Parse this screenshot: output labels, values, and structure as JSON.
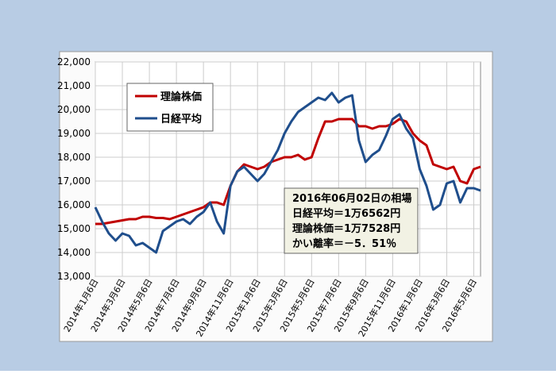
{
  "chart_data": {
    "type": "line",
    "categories": [
      "2014年1月6日",
      null,
      null,
      null,
      "2014年3月6日",
      null,
      null,
      null,
      "2014年5月6日",
      null,
      null,
      null,
      "2014年7月6日",
      null,
      null,
      null,
      "2014年9月6日",
      null,
      null,
      null,
      "2014年11月6日",
      null,
      null,
      null,
      "2015年1月6日",
      null,
      null,
      null,
      "2015年3月6日",
      null,
      null,
      null,
      "2015年5月6日",
      null,
      null,
      null,
      "2015年7月6日",
      null,
      null,
      null,
      "2015年9月6日",
      null,
      null,
      null,
      "2015年11月6日",
      null,
      null,
      null,
      "2016年1月6日",
      null,
      null,
      null,
      "2016年3月6日",
      null,
      null,
      null,
      "2016年5月6日",
      null
    ],
    "series": [
      {
        "name": "理論株価",
        "color": "#c00000",
        "values": [
          15200,
          15200,
          15250,
          15300,
          15350,
          15400,
          15400,
          15500,
          15500,
          15450,
          15450,
          15400,
          15500,
          15600,
          15700,
          15800,
          15900,
          16100,
          16100,
          16000,
          16800,
          17400,
          17700,
          17600,
          17500,
          17600,
          17800,
          17900,
          18000,
          18000,
          18100,
          17900,
          18000,
          18800,
          19500,
          19500,
          19600,
          19600,
          19600,
          19300,
          19300,
          19200,
          19300,
          19300,
          19400,
          19600,
          19500,
          19000,
          18700,
          18500,
          17700,
          17600,
          17500,
          17600,
          17000,
          16900,
          17500,
          17600
        ]
      },
      {
        "name": "日経平均",
        "color": "#1f4e8c",
        "values": [
          15900,
          15300,
          14800,
          14500,
          14800,
          14700,
          14300,
          14400,
          14200,
          14000,
          14900,
          15100,
          15300,
          15400,
          15200,
          15500,
          15700,
          16100,
          15300,
          14800,
          16800,
          17400,
          17600,
          17300,
          17000,
          17300,
          17800,
          18300,
          19000,
          19500,
          19900,
          20100,
          20300,
          20500,
          20400,
          20700,
          20300,
          20500,
          20600,
          18700,
          17800,
          18100,
          18300,
          18900,
          19600,
          19800,
          19200,
          18800,
          17500,
          16800,
          15800,
          16000,
          16900,
          17000,
          16100,
          16700,
          16700,
          16600
        ]
      }
    ],
    "ylim": [
      13000,
      22000
    ],
    "yticks": [
      {
        "value": 13000,
        "label": "13,000"
      },
      {
        "value": 14000,
        "label": "14,000"
      },
      {
        "value": 15000,
        "label": "15,000"
      },
      {
        "value": 16000,
        "label": "16,000"
      },
      {
        "value": 17000,
        "label": "17,000"
      },
      {
        "value": 18000,
        "label": "18,000"
      },
      {
        "value": 19000,
        "label": "19,000"
      },
      {
        "value": 20000,
        "label": "20,000"
      },
      {
        "value": 21000,
        "label": "21,000"
      },
      {
        "value": 22000,
        "label": "22,000"
      }
    ],
    "grid": true,
    "annotation": [
      "2016年06月02日の相場",
      "日経平均＝1万6562円",
      "理論株価＝1万7528円",
      "かい離率＝－5．51％"
    ]
  }
}
